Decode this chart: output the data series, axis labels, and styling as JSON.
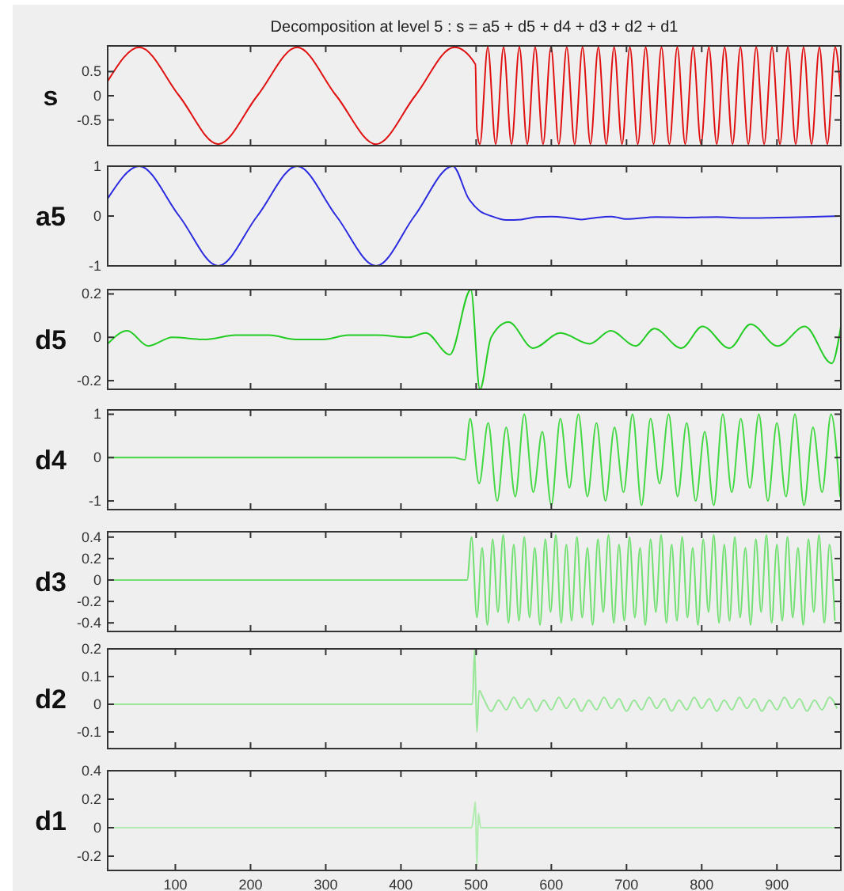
{
  "chart_data": [
    {
      "type": "line",
      "title": "Decomposition at level 5 : s = a5 + d5 + d4 + d3 + d2 + d1",
      "ylabel": "s",
      "color": "#e01010",
      "tick_labels": "y",
      "xlim": [
        10,
        985
      ],
      "xticks": [
        100,
        200,
        300,
        400,
        500,
        600,
        700,
        800,
        900
      ],
      "ylim": [
        -1.03,
        1.03
      ],
      "yticks": [
        -0.5,
        0,
        0.5
      ],
      "x": [
        10,
        52,
        105,
        157,
        209,
        262,
        314,
        367,
        419,
        471,
        499,
        501,
        505,
        515.5,
        526,
        536.5,
        547,
        557.5,
        568,
        578.5,
        589,
        599.5,
        610,
        620.5,
        631,
        641.5,
        652,
        662.5,
        673,
        683.5,
        694,
        704.5,
        715,
        725.5,
        736,
        746.5,
        757,
        767.5,
        778,
        788.5,
        799,
        809.5,
        820,
        830.5,
        841,
        851.5,
        862,
        872.5,
        883,
        893.5,
        904,
        914.5,
        925,
        935.5,
        946,
        956.5,
        967,
        977.5,
        985
      ],
      "values": [
        0.3,
        1,
        0,
        -1,
        0,
        1,
        0,
        -1,
        0,
        1,
        0.65,
        -0.7,
        -1,
        1,
        -1,
        1,
        -1,
        1,
        -1,
        1,
        -1,
        1,
        -1,
        1,
        -1,
        1,
        -1,
        1,
        -1,
        1,
        -1,
        1,
        -1,
        1,
        -1,
        1,
        -1,
        1,
        -1,
        1,
        -1,
        1,
        -1,
        1,
        -1,
        1,
        -1,
        1,
        -1,
        1,
        -1,
        1,
        -1,
        1,
        -1,
        1,
        -1,
        1,
        0
      ]
    },
    {
      "type": "line",
      "ylabel": "a5",
      "color": "#2a2ae0",
      "tick_labels": "y",
      "xlim": [
        10,
        985
      ],
      "xticks": [
        100,
        200,
        300,
        400,
        500,
        600,
        700,
        800,
        900
      ],
      "ylim": [
        -1,
        1
      ],
      "yticks": [
        -1,
        0,
        1
      ],
      "x": [
        10,
        52,
        105,
        157,
        209,
        262,
        314,
        367,
        418,
        469,
        490,
        505,
        520,
        540,
        560,
        580,
        600,
        620,
        640,
        660,
        680,
        700,
        740,
        780,
        820,
        860,
        900,
        940,
        985
      ],
      "values": [
        0.35,
        1,
        0,
        -1,
        0,
        1,
        0,
        -1,
        0,
        1,
        0.35,
        0.1,
        0,
        -0.08,
        -0.07,
        -0.02,
        -0.01,
        -0.03,
        -0.07,
        -0.03,
        -0.01,
        -0.06,
        -0.02,
        -0.03,
        -0.02,
        -0.04,
        -0.03,
        -0.02,
        0
      ]
    },
    {
      "type": "line",
      "ylabel": "d5",
      "color": "#22cc22",
      "tick_labels": "y",
      "xlim": [
        10,
        985
      ],
      "xticks": [
        100,
        200,
        300,
        400,
        500,
        600,
        700,
        800,
        900
      ],
      "ylim": [
        -0.24,
        0.22
      ],
      "yticks": [
        -0.2,
        0,
        0.2
      ],
      "x": [
        10,
        36,
        64,
        96,
        140,
        180,
        225,
        260,
        297,
        330,
        368,
        411,
        433,
        465,
        493,
        505,
        520,
        543,
        576,
        612,
        651,
        679,
        712,
        737,
        773,
        801,
        837,
        865,
        901,
        937,
        973,
        985
      ],
      "values": [
        -0.03,
        0.03,
        -0.04,
        0,
        -0.01,
        0.01,
        0.01,
        -0.01,
        -0.01,
        0.01,
        0.01,
        0,
        0.02,
        -0.08,
        0.22,
        -0.24,
        0,
        0.07,
        -0.05,
        0.02,
        -0.03,
        0.03,
        -0.04,
        0.04,
        -0.05,
        0.05,
        -0.05,
        0.06,
        -0.04,
        0.05,
        -0.12,
        0.05
      ]
    },
    {
      "type": "line",
      "ylabel": "d4",
      "color": "#44d844",
      "tick_labels": "y",
      "xlim": [
        10,
        985
      ],
      "xticks": [
        100,
        200,
        300,
        400,
        500,
        600,
        700,
        800,
        900
      ],
      "ylim": [
        -1.2,
        1.1
      ],
      "yticks": [
        -1,
        0,
        1
      ],
      "x": [
        10,
        470,
        485,
        492,
        504,
        516,
        528,
        540,
        552,
        564,
        576,
        588,
        600,
        612,
        624,
        636,
        648,
        660,
        672,
        684,
        696,
        708,
        720,
        732,
        744,
        756,
        768,
        780,
        792,
        804,
        816,
        828,
        840,
        852,
        864,
        876,
        888,
        900,
        912,
        924,
        936,
        948,
        960,
        972,
        984
      ],
      "values": [
        0,
        0,
        -0.05,
        0.9,
        -0.6,
        0.8,
        -1,
        0.7,
        -0.9,
        1,
        -0.8,
        0.6,
        -1.1,
        0.9,
        -0.7,
        1,
        -0.9,
        0.8,
        -1,
        0.7,
        -0.8,
        1,
        -1.1,
        0.9,
        -0.6,
        1,
        -0.9,
        0.8,
        -1,
        0.6,
        -1.1,
        1,
        -0.8,
        0.9,
        -0.7,
        1,
        -1,
        0.8,
        -0.9,
        1,
        -1.1,
        0.7,
        -0.8,
        1,
        -0.9
      ]
    },
    {
      "type": "line",
      "ylabel": "d3",
      "color": "#70e070",
      "tick_labels": "y",
      "xlim": [
        10,
        985
      ],
      "xticks": [
        100,
        200,
        300,
        400,
        500,
        600,
        700,
        800,
        900
      ],
      "ylim": [
        -0.48,
        0.45
      ],
      "yticks": [
        -0.4,
        -0.2,
        0,
        0.2,
        0.4
      ],
      "x": [
        10,
        488,
        494,
        501,
        508,
        515,
        522,
        529,
        536,
        543,
        550,
        557,
        564,
        571,
        578,
        585,
        592,
        599,
        606,
        613,
        620,
        627,
        634,
        641,
        648,
        655,
        662,
        669,
        676,
        683,
        690,
        697,
        704,
        711,
        718,
        725,
        732,
        739,
        746,
        753,
        760,
        767,
        774,
        781,
        788,
        795,
        802,
        809,
        816,
        823,
        830,
        837,
        844,
        851,
        858,
        865,
        872,
        879,
        886,
        893,
        900,
        907,
        914,
        921,
        928,
        935,
        942,
        949,
        956,
        963,
        970,
        977
      ],
      "values": [
        0,
        0,
        0.4,
        -0.35,
        0.3,
        -0.42,
        0.38,
        -0.3,
        0.42,
        -0.4,
        0.33,
        -0.38,
        0.4,
        -0.35,
        0.3,
        -0.42,
        0.38,
        -0.3,
        0.42,
        -0.4,
        0.33,
        -0.38,
        0.4,
        -0.35,
        0.3,
        -0.42,
        0.38,
        -0.3,
        0.42,
        -0.4,
        0.33,
        -0.38,
        0.4,
        -0.35,
        0.3,
        -0.42,
        0.38,
        -0.3,
        0.42,
        -0.4,
        0.33,
        -0.38,
        0.4,
        -0.35,
        0.3,
        -0.42,
        0.38,
        -0.3,
        0.42,
        -0.4,
        0.33,
        -0.38,
        0.4,
        -0.35,
        0.3,
        -0.42,
        0.38,
        -0.3,
        0.42,
        -0.4,
        0.33,
        -0.38,
        0.4,
        -0.35,
        0.3,
        -0.42,
        0.38,
        -0.3,
        0.42,
        -0.4,
        0.33,
        -0.38
      ]
    },
    {
      "type": "line",
      "ylabel": "d2",
      "color": "#98e698",
      "tick_labels": "y",
      "xlim": [
        10,
        985
      ],
      "xticks": [
        100,
        200,
        300,
        400,
        500,
        600,
        700,
        800,
        900
      ],
      "ylim": [
        -0.16,
        0.2
      ],
      "yticks": [
        -0.1,
        0,
        0.1,
        0.2
      ],
      "x": [
        10,
        495,
        498,
        501,
        504,
        510,
        520,
        530,
        540,
        550,
        560,
        570,
        580,
        590,
        600,
        610,
        620,
        630,
        640,
        650,
        660,
        670,
        680,
        690,
        700,
        710,
        720,
        730,
        740,
        750,
        760,
        770,
        780,
        790,
        800,
        810,
        820,
        830,
        840,
        850,
        860,
        870,
        880,
        890,
        900,
        910,
        920,
        930,
        940,
        950,
        960,
        970,
        980
      ],
      "values": [
        0,
        0,
        0.2,
        -0.1,
        0.05,
        0.02,
        -0.025,
        0.015,
        -0.02,
        0.025,
        -0.015,
        0.02,
        -0.025,
        0.015,
        -0.02,
        0.025,
        -0.015,
        0.02,
        -0.025,
        0.015,
        -0.02,
        0.025,
        -0.015,
        0.02,
        -0.025,
        0.015,
        -0.02,
        0.025,
        -0.015,
        0.02,
        -0.025,
        0.015,
        -0.02,
        0.025,
        -0.015,
        0.02,
        -0.025,
        0.015,
        -0.02,
        0.025,
        -0.015,
        0.02,
        -0.025,
        0.015,
        -0.02,
        0.025,
        -0.015,
        0.02,
        -0.025,
        0.015,
        -0.02,
        0.025,
        -0.015
      ]
    },
    {
      "type": "line",
      "ylabel": "d1",
      "color": "#b0ecb0",
      "xlim": [
        10,
        985
      ],
      "xticks": [
        100,
        200,
        300,
        400,
        500,
        600,
        700,
        800,
        900
      ],
      "ylim": [
        -0.3,
        0.4
      ],
      "yticks": [
        -0.2,
        0,
        0.2,
        0.4
      ],
      "x": [
        10,
        494,
        497,
        499,
        501,
        503,
        506,
        985
      ],
      "values": [
        0,
        0,
        0.1,
        0.18,
        -0.27,
        0.1,
        0,
        0
      ]
    }
  ]
}
